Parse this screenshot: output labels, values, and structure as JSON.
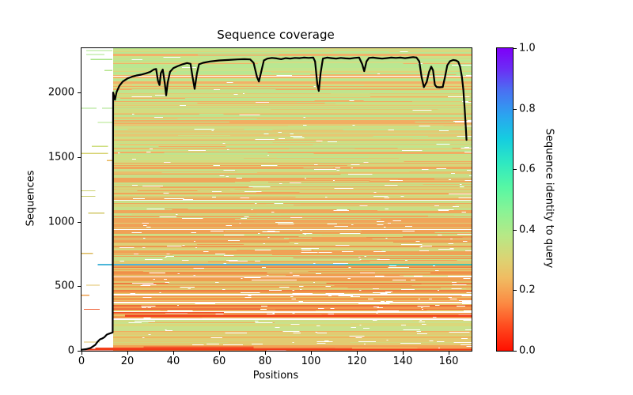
{
  "chart_data": {
    "type": "heatmap",
    "title": "Sequence coverage",
    "xlabel": "Positions",
    "ylabel": "Sequences",
    "xlim": [
      0,
      170
    ],
    "ylim": [
      0,
      2343
    ],
    "x_ticks": [
      0,
      20,
      40,
      60,
      80,
      100,
      120,
      140,
      160
    ],
    "y_ticks": [
      0,
      500,
      1000,
      1500,
      2000
    ],
    "grid": false,
    "n_positions": 168,
    "n_sequences": 2280,
    "fill_start_position": 13.8,
    "colorbar": {
      "label": "Sequence identity to query",
      "ticks": [
        "0.0",
        "0.2",
        "0.4",
        "0.6",
        "0.8",
        "1.0"
      ],
      "tick_values": [
        0.0,
        0.2,
        0.4,
        0.6,
        0.8,
        1.0
      ],
      "gradient": [
        [
          0.0,
          "#ff0f00"
        ],
        [
          0.08,
          "#ff4a1e"
        ],
        [
          0.16,
          "#fb8c44"
        ],
        [
          0.24,
          "#f0bc62"
        ],
        [
          0.3,
          "#ddd272"
        ],
        [
          0.38,
          "#b7e886"
        ],
        [
          0.46,
          "#8af395"
        ],
        [
          0.54,
          "#57f7a4"
        ],
        [
          0.62,
          "#2fe9c1"
        ],
        [
          0.7,
          "#15cde0"
        ],
        [
          0.78,
          "#2ba3f0"
        ],
        [
          0.86,
          "#4a70f2"
        ],
        [
          0.93,
          "#6b2ef5"
        ],
        [
          1.0,
          "#7e00f8"
        ]
      ]
    },
    "coverage_line": {
      "color": "#000000",
      "width": 2.2,
      "points": [
        [
          0,
          8
        ],
        [
          2,
          12
        ],
        [
          4,
          22
        ],
        [
          6,
          45
        ],
        [
          7,
          70
        ],
        [
          8,
          88
        ],
        [
          9,
          95
        ],
        [
          10,
          105
        ],
        [
          11,
          125
        ],
        [
          12,
          132
        ],
        [
          13,
          138
        ],
        [
          13.6,
          142
        ],
        [
          13.8,
          2000
        ],
        [
          14.6,
          1945
        ],
        [
          15.3,
          2005
        ],
        [
          16.5,
          2052
        ],
        [
          18,
          2085
        ],
        [
          20,
          2108
        ],
        [
          22,
          2122
        ],
        [
          24,
          2132
        ],
        [
          26,
          2138
        ],
        [
          28,
          2148
        ],
        [
          30,
          2160
        ],
        [
          31.5,
          2178
        ],
        [
          32.5,
          2182
        ],
        [
          33.3,
          2092
        ],
        [
          34,
          2058
        ],
        [
          34.6,
          2150
        ],
        [
          35.4,
          2178
        ],
        [
          36.3,
          2070
        ],
        [
          36.9,
          1978
        ],
        [
          37.6,
          2078
        ],
        [
          38.6,
          2160
        ],
        [
          40,
          2188
        ],
        [
          42,
          2205
        ],
        [
          44,
          2218
        ],
        [
          46,
          2228
        ],
        [
          47.5,
          2222
        ],
        [
          48.3,
          2130
        ],
        [
          49.3,
          2028
        ],
        [
          50.3,
          2148
        ],
        [
          51.2,
          2218
        ],
        [
          53,
          2230
        ],
        [
          56,
          2240
        ],
        [
          60,
          2248
        ],
        [
          64,
          2252
        ],
        [
          68,
          2256
        ],
        [
          71,
          2258
        ],
        [
          73.5,
          2256
        ],
        [
          75,
          2230
        ],
        [
          76.5,
          2120
        ],
        [
          77.3,
          2085
        ],
        [
          78.3,
          2160
        ],
        [
          79.5,
          2248
        ],
        [
          81,
          2262
        ],
        [
          83,
          2268
        ],
        [
          85,
          2264
        ],
        [
          87,
          2258
        ],
        [
          89,
          2266
        ],
        [
          91,
          2262
        ],
        [
          93,
          2268
        ],
        [
          95,
          2266
        ],
        [
          97,
          2270
        ],
        [
          99,
          2268
        ],
        [
          101,
          2270
        ],
        [
          101.8,
          2240
        ],
        [
          102.8,
          2060
        ],
        [
          103.4,
          2012
        ],
        [
          104.2,
          2150
        ],
        [
          105.2,
          2262
        ],
        [
          107,
          2270
        ],
        [
          109,
          2266
        ],
        [
          111,
          2262
        ],
        [
          113,
          2268
        ],
        [
          115,
          2264
        ],
        [
          117,
          2262
        ],
        [
          119,
          2268
        ],
        [
          121,
          2270
        ],
        [
          122.3,
          2220
        ],
        [
          123.2,
          2165
        ],
        [
          124.2,
          2240
        ],
        [
          125.3,
          2268
        ],
        [
          127,
          2270
        ],
        [
          129,
          2266
        ],
        [
          131,
          2262
        ],
        [
          133,
          2266
        ],
        [
          135,
          2270
        ],
        [
          137,
          2268
        ],
        [
          139,
          2270
        ],
        [
          141,
          2266
        ],
        [
          143,
          2270
        ],
        [
          144.5,
          2274
        ],
        [
          146,
          2270
        ],
        [
          147.2,
          2240
        ],
        [
          148.2,
          2120
        ],
        [
          149.2,
          2042
        ],
        [
          150.4,
          2080
        ],
        [
          151.5,
          2160
        ],
        [
          152.4,
          2200
        ],
        [
          153.2,
          2172
        ],
        [
          154,
          2060
        ],
        [
          154.8,
          2042
        ],
        [
          156,
          2040
        ],
        [
          157.4,
          2042
        ],
        [
          158.4,
          2120
        ],
        [
          159.4,
          2210
        ],
        [
          160.6,
          2242
        ],
        [
          162,
          2252
        ],
        [
          163.2,
          2248
        ],
        [
          164.2,
          2238
        ],
        [
          165,
          2200
        ],
        [
          165.8,
          2120
        ],
        [
          166.4,
          2020
        ],
        [
          167,
          1870
        ],
        [
          167.5,
          1720
        ],
        [
          167.8,
          1632
        ]
      ]
    },
    "bands": [
      {
        "hi": 2343,
        "lo": 2060,
        "gaps": 0.7,
        "palette": [
          [
            "#b9e792",
            4
          ],
          [
            "#cbe289",
            3
          ],
          [
            "#dfd47b",
            2
          ],
          [
            "#f2b168",
            1.5
          ],
          [
            "#ffffff",
            0.12
          ]
        ]
      },
      {
        "hi": 2060,
        "lo": 1460,
        "gaps": 1.1,
        "palette": [
          [
            "#bfe48e",
            3.5
          ],
          [
            "#d3dc80",
            2.6
          ],
          [
            "#f1ad62",
            1.8
          ],
          [
            "#e5c873",
            1.6
          ],
          [
            "#ffffff",
            0.25
          ]
        ]
      },
      {
        "hi": 1460,
        "lo": 1010,
        "gaps": 1.6,
        "palette": [
          [
            "#d8d47a",
            3
          ],
          [
            "#f0a55a",
            2.6
          ],
          [
            "#c7df88",
            2.2
          ],
          [
            "#e9c06c",
            1.8
          ],
          [
            "#ffffff",
            0.35
          ]
        ]
      },
      {
        "hi": 1010,
        "lo": 700,
        "gaps": 2.0,
        "palette": [
          [
            "#f0a156",
            3.4
          ],
          [
            "#decf76",
            2.4
          ],
          [
            "#c9df88",
            1.4
          ],
          [
            "#ea8f4b",
            1.0
          ],
          [
            "#ffffff",
            0.4
          ]
        ]
      },
      {
        "hi": 700,
        "lo": 435,
        "gaps": 2.6,
        "palette": [
          [
            "#f09d50",
            3.6
          ],
          [
            "#e2c76f",
            2.2
          ],
          [
            "#cfdd84",
            1.2
          ],
          [
            "#ee7c40",
            0.9
          ],
          [
            "#ffffff",
            0.5
          ]
        ]
      },
      {
        "hi": 435,
        "lo": 288,
        "gaps": 3.0,
        "palette": [
          [
            "#f2994e",
            3.4
          ],
          [
            "#e9c367",
            1.8
          ],
          [
            "#ee6c38",
            1.0
          ],
          [
            "#ffffff",
            0.8
          ]
        ]
      },
      {
        "hi": 288,
        "lo": 258,
        "gaps": 2.0,
        "palette": [
          [
            "#f2984c",
            3
          ],
          [
            "#e9c367",
            1.5
          ],
          [
            "#ffffff",
            0.5
          ]
        ]
      },
      {
        "hi": 258,
        "lo": 152,
        "gaps": 1.6,
        "palette": [
          [
            "#c9e18b",
            4.2
          ],
          [
            "#dbd77a",
            2.2
          ],
          [
            "#f2ab5e",
            1.0
          ],
          [
            "#ffffff",
            0.35
          ]
        ]
      },
      {
        "hi": 152,
        "lo": 46,
        "gaps": 2.0,
        "palette": [
          [
            "#e2cb72",
            3.6
          ],
          [
            "#edb45e",
            2.4
          ],
          [
            "#d2d87e",
            1.4
          ],
          [
            "#ffffff",
            0.4
          ]
        ]
      },
      {
        "hi": 46,
        "lo": 0,
        "gaps": 1.5,
        "palette": [
          [
            "#f2a254",
            3
          ],
          [
            "#ee6c32",
            2
          ],
          [
            "#e9c468",
            1.2
          ],
          [
            "#ffffff",
            0.3
          ]
        ]
      }
    ],
    "gap_columns": [
      22,
      27,
      37,
      43,
      49,
      57,
      63,
      70,
      75,
      80,
      85,
      91,
      96,
      102,
      107,
      111,
      117,
      122,
      128,
      133,
      140,
      147,
      155,
      161,
      166
    ],
    "left_segments": [
      {
        "seq": 2325,
        "p0": 2,
        "p1": 13.5,
        "color": "#a9e487"
      },
      {
        "seq": 2294,
        "p0": 2,
        "p1": 10,
        "color": "#a9e487"
      },
      {
        "seq": 2257,
        "p0": 4,
        "p1": 13.5,
        "color": "#a9e487"
      },
      {
        "seq": 2171,
        "p0": 10,
        "p1": 13.5,
        "color": "#b5e48c"
      },
      {
        "seq": 1878,
        "p0": 0,
        "p1": 6.5,
        "color": "#a5e284"
      },
      {
        "seq": 1878,
        "p0": 9,
        "p1": 13.5,
        "color": "#a5e284"
      },
      {
        "seq": 1768,
        "p0": 7,
        "p1": 13.5,
        "color": "#b2e48a"
      },
      {
        "seq": 1584,
        "p0": 4.5,
        "p1": 11.5,
        "color": "#cede7e"
      },
      {
        "seq": 1529,
        "p0": 0,
        "p1": 11.5,
        "color": "#d6d16e"
      },
      {
        "seq": 1474,
        "p0": 11,
        "p1": 13.5,
        "color": "#e8b558"
      },
      {
        "seq": 1239,
        "p0": 0,
        "p1": 6,
        "color": "#cfd271"
      },
      {
        "seq": 1196,
        "p0": 0,
        "p1": 6,
        "color": "#cbce6e"
      },
      {
        "seq": 1067,
        "p0": 3,
        "p1": 10,
        "color": "#d2c86a"
      },
      {
        "seq": 754,
        "p0": 0,
        "p1": 5,
        "color": "#dcba5e"
      },
      {
        "seq": 509,
        "p0": 2,
        "p1": 8,
        "color": "#e2c264"
      },
      {
        "seq": 430,
        "p0": 0,
        "p1": 3.5,
        "color": "#efa04e"
      },
      {
        "seq": 322,
        "p0": 1,
        "p1": 8,
        "color": "#ee5e34"
      },
      {
        "seq": 67,
        "p0": 1,
        "p1": 8,
        "color": "#e0c468"
      }
    ],
    "special_rows": [
      {
        "seq": 668,
        "p0": 7,
        "p1": 115,
        "color": "#4bb6da",
        "h": 2
      },
      {
        "seq": 668,
        "p0": 115,
        "p1": 170,
        "color": "#44c4ae",
        "h": 2
      },
      {
        "seq": 296,
        "p0": 14,
        "p1": 62,
        "color": "#f0512c",
        "h": 1.4
      },
      {
        "seq": 322,
        "p0": 14,
        "p1": 78,
        "color": "#ef5530",
        "h": 1.4
      },
      {
        "seq": 270,
        "p0": 19,
        "p1": 170,
        "color": "#f23d1d",
        "h": 2.5
      },
      {
        "seq": 30,
        "p0": 27,
        "p1": 75,
        "color": "#f0602e",
        "h": 1.4
      },
      {
        "seq": 18,
        "p0": 6,
        "p1": 75,
        "color": "#f4441f",
        "h": 2
      },
      {
        "seq": 18,
        "p0": 75,
        "p1": 118,
        "color": "#ef5a2e",
        "h": 1.4
      },
      {
        "seq": 8,
        "p0": 1,
        "p1": 170,
        "color": "#f23a18",
        "h": 2
      }
    ],
    "seed": 1337
  }
}
